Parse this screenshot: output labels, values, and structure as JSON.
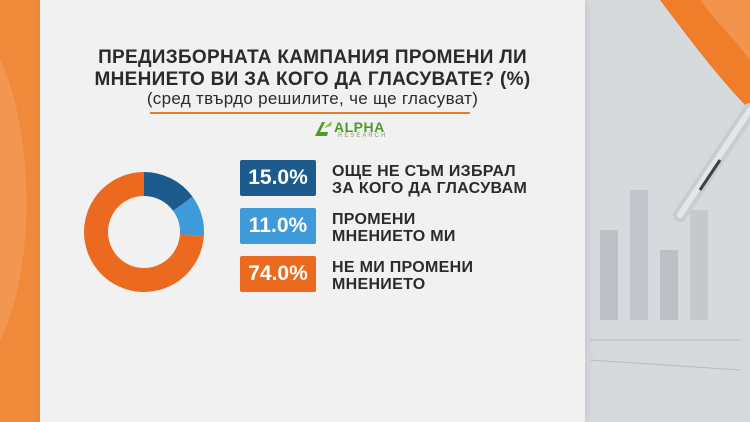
{
  "title": {
    "line1": "ПРЕДИЗБОРНАТА КАМПАНИЯ ПРОМЕНИ ЛИ",
    "line2": "МНЕНИЕТО ВИ ЗА КОГО ДА ГЛАСУВАТЕ? (%)",
    "line3": "(сред твърдо решилите, че ще гласуват)"
  },
  "logo": {
    "name": "ALPHA",
    "sub": "RESEARCH"
  },
  "colors": {
    "dark_blue": "#1d5a8d",
    "light_blue": "#3f9ad9",
    "orange": "#ec6a1f"
  },
  "chart_data": {
    "type": "pie",
    "series": [
      {
        "value": 15.0,
        "label": "15.0%",
        "text_line1": "ОЩЕ НЕ СЪМ ИЗБРАЛ",
        "text_line2": "ЗА КОГО ДА ГЛАСУВАМ",
        "color": "#1d5a8d"
      },
      {
        "value": 11.0,
        "label": "11.0%",
        "text_line1": "ПРОМЕНИ",
        "text_line2": "МНЕНИЕТО МИ",
        "color": "#3f9ad9"
      },
      {
        "value": 74.0,
        "label": "74.0%",
        "text_line1": "НЕ МИ ПРОМЕНИ",
        "text_line2": "МНЕНИЕТО",
        "color": "#ec6a1f"
      }
    ]
  }
}
